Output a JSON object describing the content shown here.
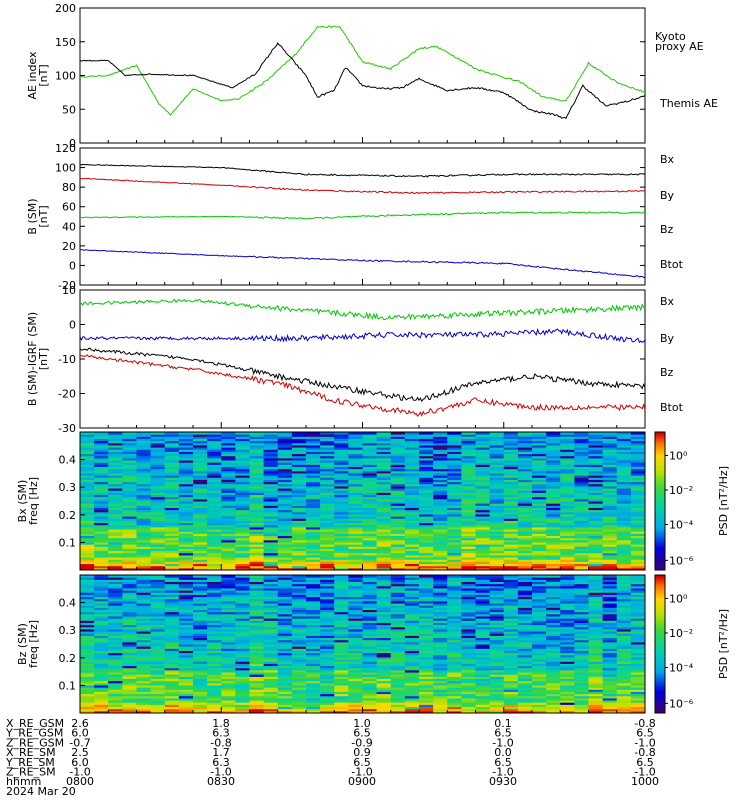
{
  "panel_labels": {
    "ae_ylabel": [
      "AE index",
      "[nT]"
    ],
    "b_ylabel": [
      "B (SM)",
      "[nT]"
    ],
    "db_ylabel": [
      "B (SM)-IGRF (SM)",
      "[nT]"
    ],
    "spec1_ylabel": [
      "Bx (SM)",
      "freq   [Hz]"
    ],
    "spec2_ylabel": [
      "Bz (SM)",
      "freq   [Hz]"
    ],
    "colorbar_label": "PSD  [nT²/Hz]"
  },
  "colors": {
    "black": "#000000",
    "red": "#d00000",
    "green": "#00c800",
    "blue": "#0000c8",
    "kyoto_green": "#22c800"
  },
  "ephemeris": {
    "rows": [
      {
        "label": "X_RE_GSM",
        "values": [
          "2.6",
          "1.8",
          "1.0",
          "0.1",
          "-0.8"
        ]
      },
      {
        "label": "Y_RE_GSM",
        "values": [
          "6.0",
          "6.3",
          "6.5",
          "6.5",
          "6.5"
        ]
      },
      {
        "label": "Z_RE_GSM",
        "values": [
          "-0.7",
          "-0.8",
          "-0.9",
          "-1.0",
          "-1.0"
        ]
      },
      {
        "label": "X_RE_SM",
        "values": [
          "2.5",
          "1.7",
          "0.9",
          "0.0",
          "-0.8"
        ]
      },
      {
        "label": "Y_RE_SM",
        "values": [
          "6.0",
          "6.3",
          "6.5",
          "6.5",
          "6.5"
        ]
      },
      {
        "label": "Z_RE_SM",
        "values": [
          "-1.0",
          "-1.0",
          "-1.0",
          "-1.0",
          "-1.0"
        ]
      },
      {
        "label": "hhmm",
        "values": [
          "0800",
          "0830",
          "0900",
          "0930",
          "1000"
        ]
      }
    ],
    "date": "2024 Mar 20"
  },
  "chart_data": [
    {
      "type": "line",
      "ylabel": "AE index [nT]",
      "ylim": [
        0,
        200
      ],
      "yticks": [
        "0",
        "50",
        "100",
        "150",
        "200"
      ],
      "series": [
        {
          "name": "Kyoto proxy AE",
          "color": "#22c800",
          "x": [
            0,
            5,
            10,
            14,
            16,
            20,
            25,
            28,
            33,
            38,
            42,
            46,
            50,
            55,
            60,
            63,
            66,
            70,
            74,
            78,
            82,
            86,
            90,
            95,
            100
          ],
          "values": [
            98,
            100,
            115,
            58,
            42,
            80,
            63,
            65,
            92,
            130,
            172,
            172,
            120,
            110,
            140,
            143,
            130,
            110,
            100,
            90,
            68,
            62,
            118,
            90,
            75
          ]
        },
        {
          "name": "Themis AE",
          "color": "#000000",
          "x": [
            0,
            5,
            8,
            12,
            20,
            27,
            31,
            35,
            40,
            42,
            45,
            47,
            50,
            54,
            57,
            60,
            65,
            70,
            75,
            80,
            84,
            86,
            89,
            93,
            97,
            100
          ],
          "values": [
            122,
            122,
            100,
            102,
            100,
            82,
            102,
            148,
            100,
            68,
            78,
            112,
            85,
            80,
            82,
            95,
            78,
            82,
            75,
            48,
            42,
            36,
            85,
            55,
            62,
            70
          ]
        }
      ],
      "legend": "right"
    },
    {
      "type": "line",
      "ylabel": "B (SM) [nT]",
      "ylim": [
        -20,
        120
      ],
      "yticks": [
        "-20",
        "0",
        "20",
        "40",
        "60",
        "80",
        "100",
        "120"
      ],
      "series": [
        {
          "name": "Bx",
          "color": "#000000",
          "x": [
            0,
            25,
            40,
            60,
            75,
            100
          ],
          "values": [
            103,
            100,
            93,
            91,
            93,
            93
          ]
        },
        {
          "name": "By",
          "color": "#d00000",
          "x": [
            0,
            25,
            40,
            60,
            75,
            100
          ],
          "values": [
            89,
            82,
            77,
            74,
            75,
            76
          ]
        },
        {
          "name": "Bz",
          "color": "#00c800",
          "x": [
            0,
            25,
            40,
            60,
            75,
            100
          ],
          "values": [
            49,
            50,
            48,
            52,
            54,
            54
          ]
        },
        {
          "name": "Btot",
          "color": "#0000c8",
          "x": [
            0,
            25,
            50,
            75,
            100
          ],
          "values": [
            16,
            10,
            5,
            2,
            -12
          ]
        }
      ],
      "legend": "right"
    },
    {
      "type": "line",
      "ylabel": "B (SM)-IGRF (SM) [nT]",
      "ylim": [
        -30,
        10
      ],
      "yticks": [
        "-30",
        "-20",
        "-10",
        "0"
      ],
      "series": [
        {
          "name": "Bx",
          "color": "#00c800",
          "x": [
            0,
            20,
            40,
            55,
            70,
            85,
            100
          ],
          "values": [
            6,
            7,
            4,
            2,
            3,
            4,
            5
          ]
        },
        {
          "name": "By",
          "color": "#0000c8",
          "x": [
            0,
            20,
            40,
            55,
            70,
            85,
            100
          ],
          "values": [
            -4,
            -4,
            -4,
            -3,
            -3,
            -2,
            -5
          ]
        },
        {
          "name": "Bz",
          "color": "#000000",
          "x": [
            0,
            20,
            35,
            45,
            60,
            70,
            80,
            90,
            100
          ],
          "values": [
            -7,
            -10,
            -15,
            -18,
            -22,
            -17,
            -15,
            -17,
            -18
          ]
        },
        {
          "name": "Btot",
          "color": "#d00000",
          "x": [
            0,
            20,
            35,
            45,
            60,
            70,
            80,
            90,
            100
          ],
          "values": [
            -9,
            -13,
            -17,
            -22,
            -26,
            -22,
            -24,
            -24,
            -24
          ]
        }
      ],
      "legend": "right"
    },
    {
      "type": "heatmap",
      "ylabel": "Bx (SM) freq [Hz]",
      "ylim": [
        0,
        0.5
      ],
      "yticks": [
        "0.1",
        "0.2",
        "0.3",
        "0.4"
      ],
      "colorbar": {
        "label": "PSD [nT²/Hz]",
        "ticks": [
          "10⁰",
          "10⁻²",
          "10⁻⁴",
          "10⁻⁶"
        ]
      }
    },
    {
      "type": "heatmap",
      "ylabel": "Bz (SM) freq [Hz]",
      "ylim": [
        0,
        0.5
      ],
      "yticks": [
        "0.1",
        "0.2",
        "0.3",
        "0.4"
      ],
      "colorbar": {
        "label": "PSD [nT²/Hz]",
        "ticks": [
          "10⁰",
          "10⁻²",
          "10⁻⁴",
          "10⁻⁶"
        ]
      }
    }
  ]
}
